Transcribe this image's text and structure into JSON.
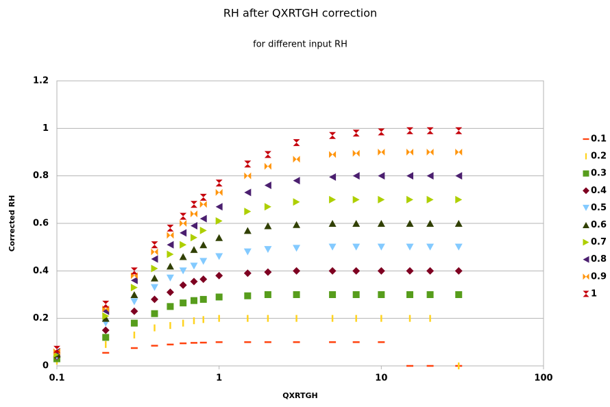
{
  "chart_data": {
    "type": "scatter",
    "title": "RH after QXRTGH correction",
    "subtitle": "for different input RH",
    "x_label": "QXRTGH",
    "y_label": "Corrected RH",
    "xscale": "log",
    "grid": true,
    "legend": "right",
    "xlim": [
      0.1,
      100
    ],
    "xticks": [
      0.1,
      1,
      10,
      100
    ],
    "ylim": [
      0,
      1.2
    ],
    "yticks": [
      0,
      0.2,
      0.4,
      0.6,
      0.8,
      1,
      1.2
    ],
    "x": [
      0.1,
      0.2,
      0.3,
      0.4,
      0.5,
      0.6,
      0.7,
      0.8,
      1,
      1.5,
      2,
      3,
      5,
      7,
      10,
      15,
      20,
      30
    ],
    "series": [
      {
        "name": "0.1",
        "color": "#ff420e",
        "marker": "hdash",
        "values": [
          0.02,
          0.055,
          0.075,
          0.085,
          0.09,
          0.095,
          0.097,
          0.098,
          0.1,
          0.1,
          0.1,
          0.1,
          0.1,
          0.1,
          0.1,
          0,
          0,
          0
        ]
      },
      {
        "name": "0.2",
        "color": "#ffd320",
        "marker": "vdash",
        "values": [
          0.02,
          0.09,
          0.13,
          0.16,
          0.17,
          0.18,
          0.19,
          0.195,
          0.2,
          0.2,
          0.2,
          0.2,
          0.2,
          0.2,
          0.2,
          0.2,
          0.2,
          0
        ]
      },
      {
        "name": "0.3",
        "color": "#579d1c",
        "marker": "square",
        "values": [
          0.03,
          0.12,
          0.18,
          0.22,
          0.25,
          0.265,
          0.275,
          0.28,
          0.29,
          0.295,
          0.3,
          0.3,
          0.3,
          0.3,
          0.3,
          0.3,
          0.3,
          0.3
        ]
      },
      {
        "name": "0.4",
        "color": "#7e0021",
        "marker": "diamond",
        "values": [
          0.04,
          0.15,
          0.23,
          0.28,
          0.31,
          0.34,
          0.355,
          0.365,
          0.38,
          0.39,
          0.395,
          0.4,
          0.4,
          0.4,
          0.4,
          0.4,
          0.4,
          0.4
        ]
      },
      {
        "name": "0.5",
        "color": "#83caff",
        "marker": "down",
        "values": [
          0.04,
          0.18,
          0.27,
          0.33,
          0.37,
          0.4,
          0.42,
          0.44,
          0.46,
          0.48,
          0.49,
          0.495,
          0.5,
          0.5,
          0.5,
          0.5,
          0.5,
          0.5
        ]
      },
      {
        "name": "0.6",
        "color": "#314004",
        "marker": "up",
        "values": [
          0.05,
          0.2,
          0.3,
          0.37,
          0.42,
          0.46,
          0.49,
          0.51,
          0.54,
          0.57,
          0.59,
          0.595,
          0.6,
          0.6,
          0.6,
          0.6,
          0.6,
          0.6
        ]
      },
      {
        "name": "0.7",
        "color": "#aecf00",
        "marker": "right",
        "values": [
          0.05,
          0.21,
          0.33,
          0.41,
          0.47,
          0.51,
          0.54,
          0.57,
          0.61,
          0.65,
          0.67,
          0.69,
          0.7,
          0.7,
          0.7,
          0.7,
          0.7,
          0.7
        ]
      },
      {
        "name": "0.8",
        "color": "#4b1f6f",
        "marker": "left",
        "values": [
          0.06,
          0.23,
          0.36,
          0.45,
          0.51,
          0.56,
          0.59,
          0.62,
          0.67,
          0.73,
          0.76,
          0.78,
          0.795,
          0.8,
          0.8,
          0.8,
          0.8,
          0.8
        ]
      },
      {
        "name": "0.9",
        "color": "#ff950e",
        "marker": "bowtie",
        "values": [
          0.06,
          0.24,
          0.38,
          0.48,
          0.55,
          0.6,
          0.64,
          0.68,
          0.73,
          0.8,
          0.84,
          0.87,
          0.89,
          0.895,
          0.9,
          0.9,
          0.9,
          0.9
        ]
      },
      {
        "name": "1",
        "color": "#c5000b",
        "marker": "hourglass",
        "values": [
          0.07,
          0.26,
          0.4,
          0.51,
          0.58,
          0.63,
          0.68,
          0.71,
          0.77,
          0.85,
          0.89,
          0.94,
          0.97,
          0.98,
          0.985,
          0.99,
          0.99,
          0.99
        ]
      }
    ]
  }
}
